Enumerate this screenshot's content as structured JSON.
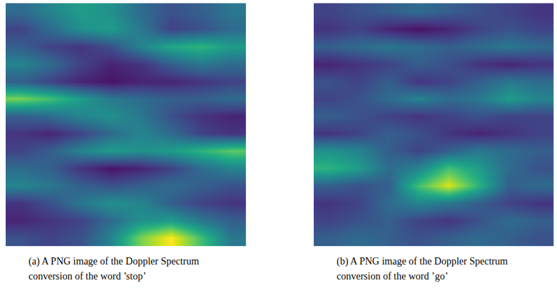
{
  "chart_data": [
    {
      "type": "heatmap",
      "caption": "(a) A PNG image of the Doppler Spectrum conversion of the word ’stop’",
      "color": "Viridis",
      "tick_labels": false,
      "zlim": [
        0,
        1
      ],
      "cells": [
        [
          0.35,
          0.45,
          0.55,
          0.5,
          0.35,
          0.25,
          0.3,
          0.4
        ],
        [
          0.2,
          0.35,
          0.5,
          0.55,
          0.4,
          0.2,
          0.25,
          0.35
        ],
        [
          0.3,
          0.2,
          0.15,
          0.25,
          0.45,
          0.6,
          0.65,
          0.55
        ],
        [
          0.45,
          0.35,
          0.2,
          0.1,
          0.15,
          0.3,
          0.4,
          0.35
        ],
        [
          0.3,
          0.2,
          0.1,
          0.05,
          0.1,
          0.1,
          0.15,
          0.2
        ],
        [
          0.8,
          0.7,
          0.55,
          0.4,
          0.35,
          0.3,
          0.3,
          0.35
        ],
        [
          0.3,
          0.35,
          0.45,
          0.5,
          0.4,
          0.25,
          0.15,
          0.1
        ],
        [
          0.15,
          0.1,
          0.2,
          0.35,
          0.45,
          0.35,
          0.2,
          0.15
        ],
        [
          0.2,
          0.3,
          0.45,
          0.55,
          0.5,
          0.55,
          0.65,
          0.75
        ],
        [
          0.35,
          0.3,
          0.15,
          0.05,
          0.1,
          0.2,
          0.35,
          0.45
        ],
        [
          0.45,
          0.4,
          0.3,
          0.25,
          0.3,
          0.35,
          0.3,
          0.25
        ],
        [
          0.15,
          0.25,
          0.4,
          0.5,
          0.45,
          0.3,
          0.2,
          0.15
        ],
        [
          0.1,
          0.15,
          0.2,
          0.35,
          0.5,
          0.55,
          0.4,
          0.3
        ],
        [
          0.25,
          0.2,
          0.25,
          0.45,
          0.8,
          1.0,
          0.7,
          0.4
        ]
      ]
    },
    {
      "type": "heatmap",
      "caption": "(b) A PNG image of the Doppler Spectrum conversion of the word ’go’",
      "color": "Viridis",
      "tick_labels": false,
      "zlim": [
        0,
        1
      ],
      "cells": [
        [
          0.2,
          0.25,
          0.3,
          0.35,
          0.3,
          0.25,
          0.2,
          0.15
        ],
        [
          0.15,
          0.2,
          0.1,
          0.05,
          0.1,
          0.2,
          0.25,
          0.2
        ],
        [
          0.3,
          0.35,
          0.4,
          0.35,
          0.3,
          0.35,
          0.4,
          0.35
        ],
        [
          0.1,
          0.15,
          0.2,
          0.3,
          0.25,
          0.15,
          0.1,
          0.15
        ],
        [
          0.25,
          0.2,
          0.3,
          0.15,
          0.2,
          0.3,
          0.4,
          0.35
        ],
        [
          0.2,
          0.25,
          0.35,
          0.45,
          0.35,
          0.4,
          0.55,
          0.45
        ],
        [
          0.3,
          0.25,
          0.2,
          0.15,
          0.2,
          0.25,
          0.2,
          0.2
        ],
        [
          0.15,
          0.2,
          0.3,
          0.25,
          0.15,
          0.1,
          0.15,
          0.2
        ],
        [
          0.5,
          0.45,
          0.3,
          0.2,
          0.3,
          0.4,
          0.35,
          0.3
        ],
        [
          0.65,
          0.55,
          0.35,
          0.45,
          0.7,
          0.55,
          0.35,
          0.25
        ],
        [
          0.3,
          0.25,
          0.3,
          0.7,
          0.95,
          0.65,
          0.3,
          0.35
        ],
        [
          0.15,
          0.2,
          0.35,
          0.45,
          0.4,
          0.3,
          0.2,
          0.15
        ],
        [
          0.2,
          0.25,
          0.3,
          0.2,
          0.15,
          0.25,
          0.35,
          0.3
        ],
        [
          0.3,
          0.35,
          0.3,
          0.25,
          0.3,
          0.35,
          0.3,
          0.25
        ]
      ]
    }
  ]
}
